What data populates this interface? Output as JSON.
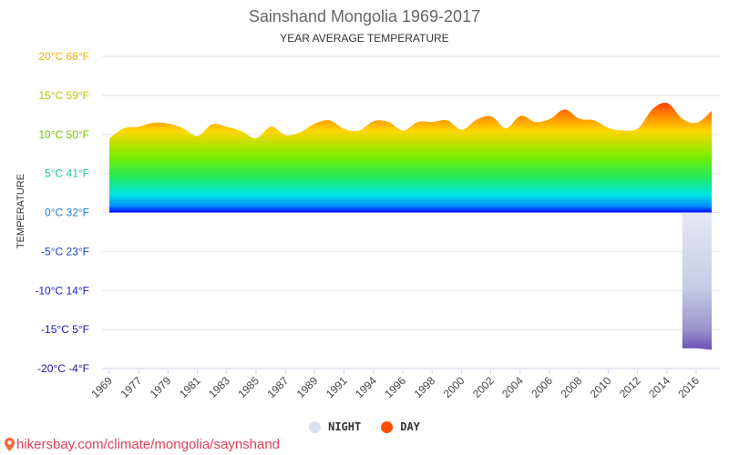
{
  "chart_data": {
    "type": "area",
    "title": "Sainshand Mongolia 1969-2017",
    "subtitle": "YEAR AVERAGE TEMPERATURE",
    "ylabel": "TEMPERATURE",
    "ylim": [
      -20,
      20
    ],
    "yticks": [
      {
        "c": 20,
        "label": "20°C 68°F",
        "color": "#e8b400"
      },
      {
        "c": 15,
        "label": "15°C 59°F",
        "color": "#b9c400"
      },
      {
        "c": 10,
        "label": "10°C 50°F",
        "color": "#7ac200"
      },
      {
        "c": 5,
        "label": "5°C 41°F",
        "color": "#1cc4a0"
      },
      {
        "c": 0,
        "label": "0°C 32°F",
        "color": "#1a7fd4"
      },
      {
        "c": -5,
        "label": "-5°C 23°F",
        "color": "#1a3fd0"
      },
      {
        "c": -10,
        "label": "-10°C 14°F",
        "color": "#1a22c0"
      },
      {
        "c": -15,
        "label": "-15°C 5°F",
        "color": "#1e18b0"
      },
      {
        "c": -20,
        "label": "-20°C -4°F",
        "color": "#24149c"
      }
    ],
    "xticks": [
      "1969",
      "1977",
      "1979",
      "1981",
      "1983",
      "1985",
      "1987",
      "1989",
      "1991",
      "1994",
      "1996",
      "1998",
      "2000",
      "2002",
      "2004",
      "2006",
      "2008",
      "2010",
      "2012",
      "2014",
      "2016"
    ],
    "x": [
      "1969",
      "1977",
      "1978",
      "1979",
      "1980",
      "1981",
      "1982",
      "1983",
      "1984",
      "1985",
      "1986",
      "1987",
      "1988",
      "1989",
      "1990",
      "1991",
      "1992",
      "1993",
      "1994",
      "1995",
      "1996",
      "1997",
      "1998",
      "1999",
      "2000",
      "2001",
      "2002",
      "2003",
      "2004",
      "2005",
      "2006",
      "2007",
      "2008",
      "2009",
      "2010",
      "2011",
      "2012",
      "2013",
      "2014",
      "2015",
      "2016",
      "2017"
    ],
    "series": [
      {
        "name": "DAY",
        "color": "#ff4e00",
        "values": [
          9.5,
          10.8,
          11.0,
          11.5,
          11.4,
          10.8,
          9.8,
          11.3,
          11.0,
          10.4,
          9.5,
          11.0,
          9.9,
          10.3,
          11.4,
          11.8,
          10.7,
          10.5,
          11.7,
          11.6,
          10.5,
          11.6,
          11.6,
          11.8,
          10.6,
          11.9,
          12.3,
          10.8,
          12.4,
          11.6,
          12.0,
          13.2,
          12.0,
          11.8,
          10.8,
          10.5,
          10.8,
          13.3,
          14.0,
          12.0,
          11.5,
          13.0
        ]
      },
      {
        "name": "NIGHT",
        "color": "#dde1ef",
        "values": [
          null,
          null,
          null,
          null,
          null,
          null,
          null,
          null,
          null,
          null,
          null,
          null,
          null,
          null,
          null,
          null,
          null,
          null,
          null,
          null,
          null,
          null,
          null,
          null,
          null,
          null,
          null,
          null,
          null,
          null,
          null,
          null,
          null,
          null,
          null,
          null,
          null,
          null,
          null,
          -17.4,
          -17.4,
          -17.6
        ]
      }
    ],
    "legend": [
      {
        "name": "NIGHT",
        "color": "#dde1ef"
      },
      {
        "name": "DAY",
        "color": "#ff4e00"
      }
    ],
    "legend_position": "bottom",
    "grid": true
  },
  "source": {
    "text": "hikersbay.com/climate/mongolia/saynshand"
  }
}
